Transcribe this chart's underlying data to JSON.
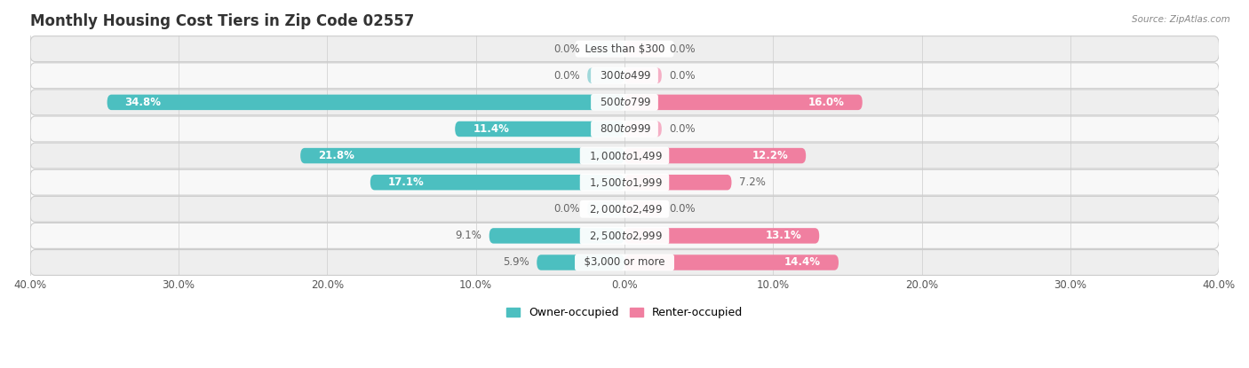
{
  "title": "Monthly Housing Cost Tiers in Zip Code 02557",
  "source": "Source: ZipAtlas.com",
  "categories": [
    "Less than $300",
    "$300 to $499",
    "$500 to $799",
    "$800 to $999",
    "$1,000 to $1,499",
    "$1,500 to $1,999",
    "$2,000 to $2,499",
    "$2,500 to $2,999",
    "$3,000 or more"
  ],
  "owner_values": [
    0.0,
    0.0,
    34.8,
    11.4,
    21.8,
    17.1,
    0.0,
    9.1,
    5.9
  ],
  "renter_values": [
    0.0,
    0.0,
    16.0,
    0.0,
    12.2,
    7.2,
    0.0,
    13.1,
    14.4
  ],
  "owner_color": "#4cbfc0",
  "renter_color": "#f07fa0",
  "owner_color_light": "#a0d8da",
  "renter_color_light": "#f5afc5",
  "axis_max": 40.0,
  "row_bg_even": "#eeeeee",
  "row_bg_odd": "#f8f8f8",
  "title_fontsize": 12,
  "label_fontsize": 8.5,
  "tick_fontsize": 8.5,
  "bar_height": 0.58,
  "figsize": [
    14.06,
    4.15
  ],
  "dpi": 100,
  "stub_size": 2.5
}
